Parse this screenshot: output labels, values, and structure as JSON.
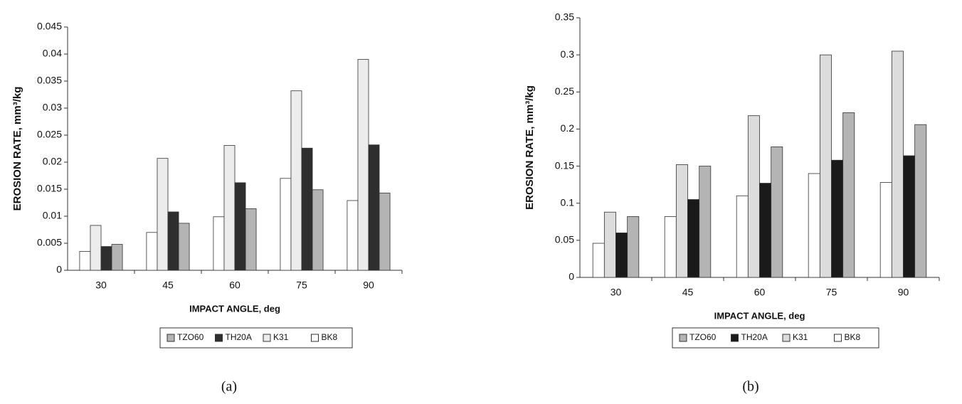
{
  "chart_data": [
    {
      "type": "bar",
      "caption": "(a)",
      "x_label": "IMPACT ANGLE, deg",
      "y_label": "EROSION RATE, mm³/kg",
      "categories": [
        "30",
        "45",
        "60",
        "75",
        "90"
      ],
      "series": [
        {
          "name": "TZO60",
          "color": "#b4b4b4",
          "values": [
            0.0048,
            0.0087,
            0.0114,
            0.0149,
            0.0143
          ]
        },
        {
          "name": "TH20A",
          "color": "#2e2e2e",
          "values": [
            0.0044,
            0.0108,
            0.0162,
            0.0226,
            0.0232
          ]
        },
        {
          "name": "K31",
          "color": "#ececec",
          "values": [
            0.0083,
            0.0207,
            0.0231,
            0.0332,
            0.039
          ]
        },
        {
          "name": "BK8",
          "color": "#ffffff",
          "values": [
            0.0035,
            0.007,
            0.0099,
            0.017,
            0.0129
          ]
        }
      ],
      "ylim": [
        0,
        0.045
      ],
      "yticks": [
        0,
        0.005,
        0.01,
        0.015,
        0.02,
        0.025,
        0.03,
        0.035,
        0.04,
        0.045
      ]
    },
    {
      "type": "bar",
      "caption": "(b)",
      "x_label": "IMPACT ANGLE, deg",
      "y_label": "EROSION RATE, mm³/kg",
      "categories": [
        "30",
        "45",
        "60",
        "75",
        "90"
      ],
      "series": [
        {
          "name": "TZO60",
          "color": "#b4b4b4",
          "values": [
            0.082,
            0.15,
            0.176,
            0.222,
            0.206
          ]
        },
        {
          "name": "TH20A",
          "color": "#1a1a1a",
          "values": [
            0.06,
            0.105,
            0.127,
            0.158,
            0.164
          ]
        },
        {
          "name": "K31",
          "color": "#dcdcdc",
          "values": [
            0.088,
            0.152,
            0.218,
            0.3,
            0.305
          ]
        },
        {
          "name": "BK8",
          "color": "#ffffff",
          "values": [
            0.046,
            0.082,
            0.11,
            0.14,
            0.128
          ]
        }
      ],
      "ylim": [
        0,
        0.35
      ],
      "yticks": [
        0,
        0.05,
        0.1,
        0.15,
        0.2,
        0.25,
        0.3,
        0.35
      ]
    }
  ]
}
